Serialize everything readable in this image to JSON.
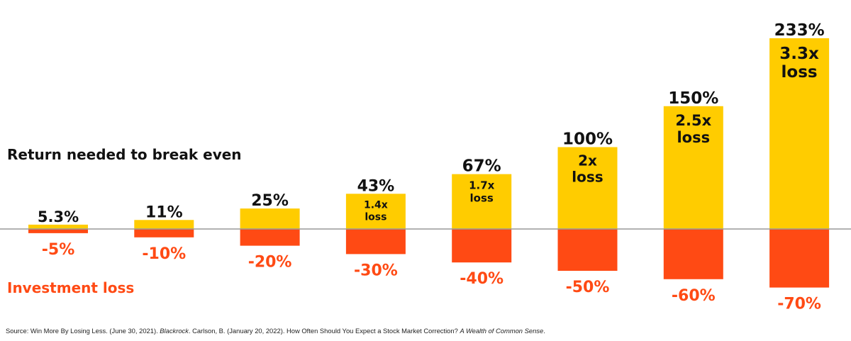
{
  "chart_data": {
    "type": "bar",
    "legend_gain": "Return needed to break even",
    "legend_loss": "Investment loss",
    "categories": [
      "-5%",
      "-10%",
      "-20%",
      "-30%",
      "-40%",
      "-50%",
      "-60%",
      "-70%"
    ],
    "series": [
      {
        "name": "Return needed to break even",
        "values": [
          5.3,
          11,
          25,
          43,
          67,
          100,
          150,
          233
        ],
        "labels": [
          "5.3%",
          "11%",
          "25%",
          "43%",
          "67%",
          "100%",
          "150%",
          "233%"
        ],
        "inner_labels": [
          [],
          [],
          [],
          [
            "1.4x",
            "loss"
          ],
          [
            "1.7x",
            "loss"
          ],
          [
            "2x",
            "loss"
          ],
          [
            "2.5x",
            "loss"
          ],
          [
            "3.3x",
            "loss"
          ]
        ]
      },
      {
        "name": "Investment loss",
        "values": [
          -5,
          -10,
          -20,
          -30,
          -40,
          -50,
          -60,
          -70
        ],
        "labels": [
          "-5%",
          "-10%",
          "-20%",
          "-30%",
          "-40%",
          "-50%",
          "-60%",
          "-70%"
        ]
      }
    ],
    "colors": {
      "gain": "#FFCC00",
      "loss": "#FF4A14",
      "baseline": "#999999"
    },
    "grid": false
  },
  "source": {
    "part1": "Source: Win More By Losing Less. (June 30, 2021). ",
    "italic1": "Blackrock",
    "part2": ". Carlson, B. (January 20, 2022). How Often Should You Expect a Stock Market Correction? ",
    "italic2": "A Wealth of Common Sense",
    "part3": "."
  }
}
